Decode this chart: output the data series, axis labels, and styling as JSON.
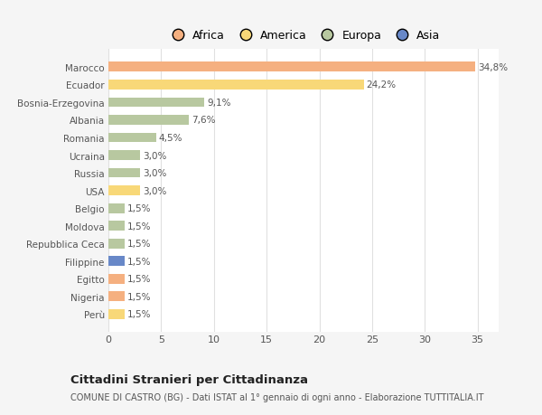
{
  "categories": [
    "Marocco",
    "Ecuador",
    "Bosnia-Erzegovina",
    "Albania",
    "Romania",
    "Ucraina",
    "Russia",
    "USA",
    "Belgio",
    "Moldova",
    "Repubblica Ceca",
    "Filippine",
    "Egitto",
    "Nigeria",
    "Perù"
  ],
  "values": [
    34.8,
    24.2,
    9.1,
    7.6,
    4.5,
    3.0,
    3.0,
    3.0,
    1.5,
    1.5,
    1.5,
    1.5,
    1.5,
    1.5,
    1.5
  ],
  "labels": [
    "34,8%",
    "24,2%",
    "9,1%",
    "7,6%",
    "4,5%",
    "3,0%",
    "3,0%",
    "3,0%",
    "1,5%",
    "1,5%",
    "1,5%",
    "1,5%",
    "1,5%",
    "1,5%",
    "1,5%"
  ],
  "colors": [
    "#f5b080",
    "#f8d878",
    "#b8c8a0",
    "#b8c8a0",
    "#b8c8a0",
    "#b8c8a0",
    "#b8c8a0",
    "#f8d878",
    "#b8c8a0",
    "#b8c8a0",
    "#b8c8a0",
    "#6888c8",
    "#f5b080",
    "#f5b080",
    "#f8d878"
  ],
  "legend_labels": [
    "Africa",
    "America",
    "Europa",
    "Asia"
  ],
  "legend_colors": [
    "#f5b080",
    "#f8d878",
    "#b8c8a0",
    "#6888c8"
  ],
  "title": "Cittadini Stranieri per Cittadinanza",
  "subtitle": "COMUNE DI CASTRO (BG) - Dati ISTAT al 1° gennaio di ogni anno - Elaborazione TUTTITALIA.IT",
  "xlim": [
    0,
    37
  ],
  "xticks": [
    0,
    5,
    10,
    15,
    20,
    25,
    30,
    35
  ],
  "bg_color": "#f5f5f5",
  "plot_bg_color": "#ffffff",
  "grid_color": "#e0e0e0",
  "bar_height": 0.55
}
